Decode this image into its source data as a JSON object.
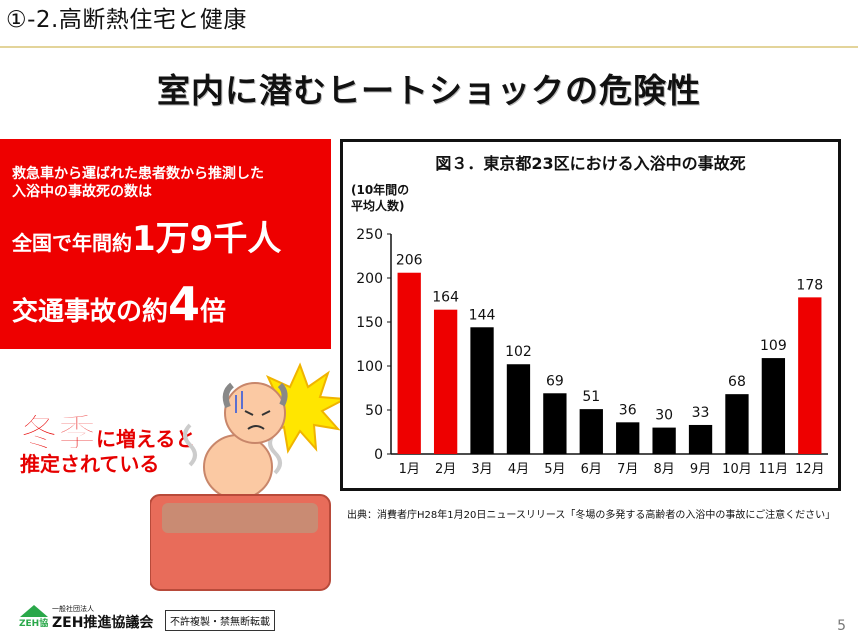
{
  "header": {
    "section": "①-2.高断熱住宅と健康"
  },
  "title": "室内に潜むヒートショックの危険性",
  "red_box": {
    "line1": "救急車から運ばれた患者数から推測した",
    "line2": "入浴中の事故死の数は",
    "stat1_prefix": "全国で年間約",
    "stat1_value": "1万9千人",
    "stat2_prefix": "交通事故の約",
    "stat2_value": "4",
    "stat2_suffix": "倍"
  },
  "winter": {
    "big": "冬季",
    "rest1": "に増えると",
    "rest2": "推定されている"
  },
  "chart_data": {
    "type": "bar",
    "title": "図３．東京都23区における入浴中の事故死",
    "ylabel_line1": "(10年間の",
    "ylabel_line2": "平均人数)",
    "categories": [
      "1月",
      "2月",
      "3月",
      "4月",
      "5月",
      "6月",
      "7月",
      "8月",
      "9月",
      "10月",
      "11月",
      "12月"
    ],
    "values": [
      206,
      164,
      144,
      102,
      69,
      51,
      36,
      30,
      33,
      68,
      109,
      178
    ],
    "bar_colors": [
      "#ee0000",
      "#ee0000",
      "#000000",
      "#000000",
      "#000000",
      "#000000",
      "#000000",
      "#000000",
      "#000000",
      "#000000",
      "#000000",
      "#ee0000"
    ],
    "ylim": [
      0,
      250
    ],
    "yticks": [
      0,
      50,
      100,
      150,
      200,
      250
    ],
    "grid": false,
    "legend": "none"
  },
  "source": "出典：消費者庁H28年1月20日ニュースリリース「冬場の多発する高齢者の入浴中の事故にご注意ください」",
  "footer": {
    "org_small": "一般社団法人",
    "org_name": "ZEH推進協議会",
    "logo_text": "ZEH協",
    "stamp": "不許複製・禁無断転載",
    "page": "5"
  },
  "colors": {
    "accent_red": "#ee0000",
    "header_line": "#e3d49a"
  }
}
